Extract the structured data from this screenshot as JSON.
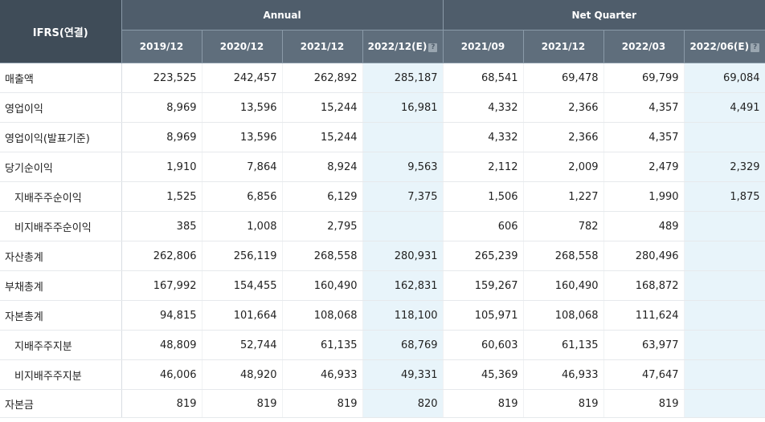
{
  "header": {
    "label": "IFRS(연결)",
    "annual_group": "Annual",
    "quarter_group": "Net Quarter",
    "annual_periods": [
      "2019/12",
      "2020/12",
      "2021/12",
      "2022/12(E)"
    ],
    "quarter_periods": [
      "2021/09",
      "2021/12",
      "2022/03",
      "2022/06(E)"
    ],
    "estimate_icon": "question-mark-icon"
  },
  "rows": [
    {
      "label": "매출액",
      "indent": false,
      "annual": [
        "223,525",
        "242,457",
        "262,892",
        "285,187"
      ],
      "quarter": [
        "68,541",
        "69,478",
        "69,799",
        "69,084"
      ]
    },
    {
      "label": "영업이익",
      "indent": false,
      "annual": [
        "8,969",
        "13,596",
        "15,244",
        "16,981"
      ],
      "quarter": [
        "4,332",
        "2,366",
        "4,357",
        "4,491"
      ]
    },
    {
      "label": "영업이익(발표기준)",
      "indent": false,
      "annual": [
        "8,969",
        "13,596",
        "15,244",
        ""
      ],
      "quarter": [
        "4,332",
        "2,366",
        "4,357",
        ""
      ]
    },
    {
      "label": "당기순이익",
      "indent": false,
      "annual": [
        "1,910",
        "7,864",
        "8,924",
        "9,563"
      ],
      "quarter": [
        "2,112",
        "2,009",
        "2,479",
        "2,329"
      ]
    },
    {
      "label": "지배주주순이익",
      "indent": true,
      "annual": [
        "1,525",
        "6,856",
        "6,129",
        "7,375"
      ],
      "quarter": [
        "1,506",
        "1,227",
        "1,990",
        "1,875"
      ]
    },
    {
      "label": "비지배주주순이익",
      "indent": true,
      "annual": [
        "385",
        "1,008",
        "2,795",
        ""
      ],
      "quarter": [
        "606",
        "782",
        "489",
        ""
      ]
    },
    {
      "label": "자산총계",
      "indent": false,
      "annual": [
        "262,806",
        "256,119",
        "268,558",
        "280,931"
      ],
      "quarter": [
        "265,239",
        "268,558",
        "280,496",
        ""
      ]
    },
    {
      "label": "부채총계",
      "indent": false,
      "annual": [
        "167,992",
        "154,455",
        "160,490",
        "162,831"
      ],
      "quarter": [
        "159,267",
        "160,490",
        "168,872",
        ""
      ]
    },
    {
      "label": "자본총계",
      "indent": false,
      "annual": [
        "94,815",
        "101,664",
        "108,068",
        "118,100"
      ],
      "quarter": [
        "105,971",
        "108,068",
        "111,624",
        ""
      ]
    },
    {
      "label": "지배주주지분",
      "indent": true,
      "annual": [
        "48,809",
        "52,744",
        "61,135",
        "68,769"
      ],
      "quarter": [
        "60,603",
        "61,135",
        "63,977",
        ""
      ]
    },
    {
      "label": "비지배주주지분",
      "indent": true,
      "annual": [
        "46,006",
        "48,920",
        "46,933",
        "49,331"
      ],
      "quarter": [
        "45,369",
        "46,933",
        "47,647",
        ""
      ]
    },
    {
      "label": "자본금",
      "indent": false,
      "annual": [
        "819",
        "819",
        "819",
        "820"
      ],
      "quarter": [
        "819",
        "819",
        "819",
        ""
      ]
    }
  ]
}
